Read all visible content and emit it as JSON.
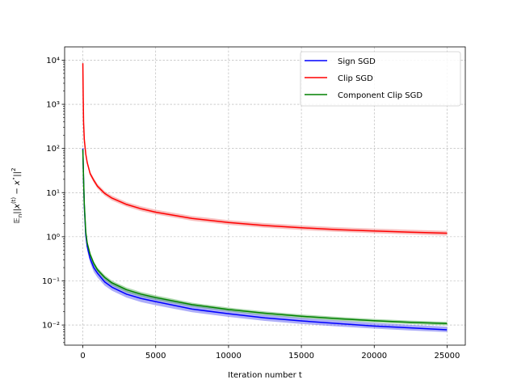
{
  "chart_data": {
    "type": "line",
    "title": "",
    "xlabel": "Iteration number t",
    "ylabel": "𝔼_n||x^(t) − x*||²",
    "yscale": "log",
    "xlim": [
      -1250,
      26250
    ],
    "ylim": [
      0.0035,
      20000
    ],
    "xticks": [
      0,
      5000,
      10000,
      15000,
      20000,
      25000
    ],
    "xtick_labels": [
      "0",
      "5000",
      "10000",
      "15000",
      "20000",
      "25000"
    ],
    "yticks": [
      0.01,
      0.1,
      1,
      10,
      100,
      1000,
      10000
    ],
    "ytick_labels": [
      "10⁻²",
      "10⁻¹",
      "10⁰",
      "10¹",
      "10²",
      "10³",
      "10⁴"
    ],
    "grid": true,
    "legend": "top-right",
    "series": [
      {
        "name": "Sign SGD",
        "color": "#0000ff",
        "band_color": "#4a4af0",
        "x": [
          0,
          50,
          100,
          200,
          300,
          500,
          750,
          1000,
          1500,
          2000,
          3000,
          4000,
          5000,
          7500,
          10000,
          12500,
          15000,
          17500,
          20000,
          22500,
          25000
        ],
        "y": [
          100,
          20,
          5,
          1.1,
          0.6,
          0.32,
          0.2,
          0.15,
          0.095,
          0.072,
          0.05,
          0.04,
          0.034,
          0.023,
          0.018,
          0.0145,
          0.0124,
          0.0108,
          0.0095,
          0.0086,
          0.0078
        ],
        "lower": [
          100,
          18,
          4.3,
          0.9,
          0.48,
          0.26,
          0.16,
          0.12,
          0.078,
          0.06,
          0.042,
          0.033,
          0.028,
          0.0195,
          0.0153,
          0.0124,
          0.0106,
          0.0093,
          0.0083,
          0.0075,
          0.0069
        ],
        "upper": [
          100,
          22,
          5.8,
          1.3,
          0.72,
          0.39,
          0.24,
          0.18,
          0.115,
          0.087,
          0.06,
          0.048,
          0.041,
          0.028,
          0.0215,
          0.0172,
          0.0146,
          0.0127,
          0.0112,
          0.0101,
          0.0092
        ]
      },
      {
        "name": "Clip SGD",
        "color": "#ff0000",
        "band_color": "#f07070",
        "x": [
          0,
          25,
          50,
          100,
          200,
          300,
          500,
          750,
          1000,
          1500,
          2000,
          3000,
          4000,
          5000,
          7500,
          10000,
          12500,
          15000,
          17500,
          20000,
          22500,
          25000
        ],
        "y": [
          8500,
          1500,
          400,
          160,
          75,
          48,
          27,
          19,
          14,
          9.6,
          7.5,
          5.4,
          4.3,
          3.6,
          2.6,
          2.1,
          1.8,
          1.6,
          1.45,
          1.35,
          1.27,
          1.2
        ],
        "lower": [
          8500,
          1400,
          370,
          145,
          67,
          43,
          24,
          16.8,
          12.4,
          8.5,
          6.6,
          4.8,
          3.8,
          3.2,
          2.3,
          1.86,
          1.6,
          1.42,
          1.29,
          1.2,
          1.13,
          1.06
        ],
        "upper": [
          8500,
          1600,
          430,
          175,
          83,
          53,
          30,
          21.5,
          15.8,
          10.8,
          8.5,
          6.1,
          4.9,
          4.1,
          2.95,
          2.38,
          2.04,
          1.81,
          1.64,
          1.53,
          1.44,
          1.36
        ]
      },
      {
        "name": "Component Clip SGD",
        "color": "#008000",
        "band_color": "#4aa84a",
        "x": [
          0,
          50,
          100,
          200,
          300,
          500,
          750,
          1000,
          1500,
          2000,
          3000,
          4000,
          5000,
          7500,
          10000,
          12500,
          15000,
          17500,
          20000,
          22500,
          25000
        ],
        "y": [
          95,
          20,
          5.5,
          1.3,
          0.72,
          0.4,
          0.25,
          0.18,
          0.12,
          0.09,
          0.063,
          0.05,
          0.042,
          0.029,
          0.0225,
          0.0185,
          0.0158,
          0.0139,
          0.0125,
          0.0115,
          0.0108
        ],
        "lower": [
          95,
          18.5,
          5,
          1.15,
          0.63,
          0.35,
          0.22,
          0.158,
          0.105,
          0.079,
          0.055,
          0.044,
          0.037,
          0.026,
          0.0203,
          0.0167,
          0.0143,
          0.0126,
          0.0114,
          0.0105,
          0.0098
        ],
        "upper": [
          95,
          21.5,
          6,
          1.45,
          0.81,
          0.45,
          0.28,
          0.2,
          0.135,
          0.101,
          0.071,
          0.056,
          0.047,
          0.032,
          0.0248,
          0.0204,
          0.0174,
          0.0153,
          0.0137,
          0.0126,
          0.0118
        ]
      }
    ]
  }
}
